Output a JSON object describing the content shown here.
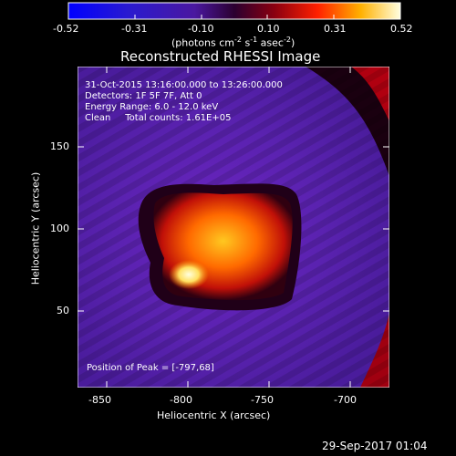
{
  "colorbar": {
    "tick_labels": [
      "-0.52",
      "-0.31",
      "-0.10",
      "0.10",
      "0.31",
      "0.52"
    ],
    "tick_values": [
      -0.52,
      -0.31,
      -0.1,
      0.1,
      0.31,
      0.52
    ],
    "unit_label": "(photons cm",
    "unit_sup1": "-2",
    "unit_mid": " s",
    "unit_sup2": "-1",
    "unit_mid2": " asec",
    "unit_sup3": "-2",
    "unit_end": ")"
  },
  "title": "Reconstructed RHESSI Image",
  "annotations": {
    "time": "31-Oct-2015 13:16:00.000 to 13:26:00.000",
    "detectors": "Detectors: 1F 5F 7F, Att 0",
    "energy": "Energy Range: 6.0 - 12.0 keV",
    "clean": "Clean     Total counts: 1.61E+05",
    "peak": "Position of Peak = [-797,68]"
  },
  "axes": {
    "xlabel": "Heliocentric X (arcsec)",
    "ylabel": "Heliocentric Y (arcsec)",
    "x_ticks": [
      "-850",
      "-800",
      "-750",
      "-700"
    ],
    "y_ticks": [
      "50",
      "100",
      "150"
    ]
  },
  "footer_timestamp": "29-Sep-2017 01:04",
  "colors": {
    "background": "#000000",
    "image_base": "#5a1fa8",
    "peak": "#ffff80"
  }
}
